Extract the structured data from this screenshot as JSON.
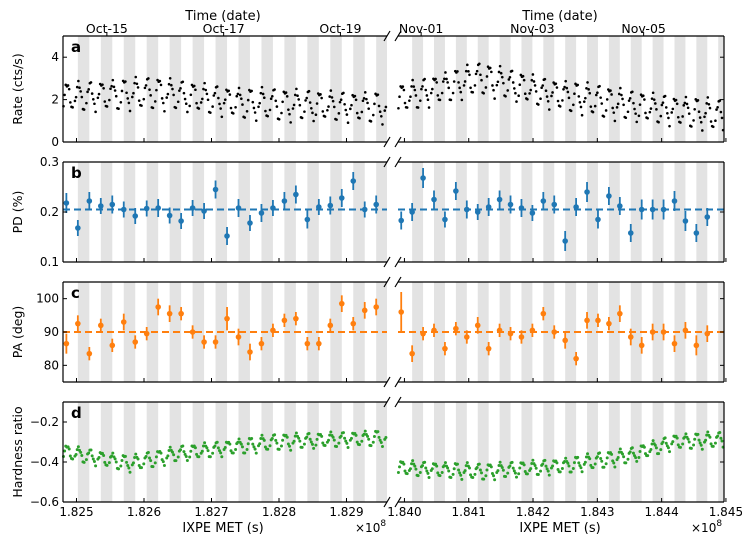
{
  "figure": {
    "top_axis_label": "Time (date)",
    "x_label": "IXPE MET (s)",
    "x_multiplier": "×10",
    "x_multiplier_exp": "8"
  },
  "chart_data": {
    "type": "scatter",
    "segments": [
      {
        "name": "left",
        "xlim": [
          1.8248,
          1.8296
        ],
        "xticks": [
          1.825,
          1.826,
          1.827,
          1.828,
          1.829
        ],
        "xtick_labels": [
          "1.825",
          "1.826",
          "1.827",
          "1.828",
          "1.829"
        ],
        "date_ticks": [
          {
            "x": 1.82545,
            "label": "Oct-15"
          },
          {
            "x": 1.82718,
            "label": "Oct-17"
          },
          {
            "x": 1.82891,
            "label": "Oct-19"
          }
        ],
        "orbit_start": 1.82485,
        "orbit_period": 0.00017
      },
      {
        "name": "right",
        "xlim": [
          1.8399,
          1.84497
        ],
        "xticks": [
          1.84,
          1.841,
          1.842,
          1.843,
          1.844,
          1.845
        ],
        "xtick_labels": [
          "1.840",
          "1.841",
          "1.842",
          "1.843",
          "1.844",
          "1.845"
        ],
        "date_ticks": [
          {
            "x": 1.84026,
            "label": "Nov-01"
          },
          {
            "x": 1.84199,
            "label": "Nov-03"
          },
          {
            "x": 1.84372,
            "label": "Nov-05"
          }
        ],
        "orbit_start": 1.83995,
        "orbit_period": 0.00017
      }
    ],
    "panels": [
      {
        "id": "a",
        "ylabel": "Rate (cts/s)",
        "color": "#000000",
        "kind": "dense",
        "ylim": [
          0,
          5
        ],
        "yticks": [
          0,
          2,
          4
        ],
        "ytick_labels": [
          "0",
          "2",
          "4"
        ],
        "left_trend": [
          [
            1.8248,
            2.1
          ],
          [
            1.8262,
            2.3
          ],
          [
            1.8275,
            1.8
          ],
          [
            1.8296,
            1.6
          ]
        ],
        "right_trend": [
          [
            1.8399,
            2.0
          ],
          [
            1.8412,
            3.0
          ],
          [
            1.8422,
            2.3
          ],
          [
            1.8435,
            1.7
          ],
          [
            1.845,
            1.2
          ]
        ],
        "swing": 0.65
      },
      {
        "id": "b",
        "ylabel": "PD (%)",
        "color": "#1f77b4",
        "kind": "errorbar",
        "ylim": [
          0.1,
          0.3
        ],
        "yticks": [
          0.1,
          0.2,
          0.3
        ],
        "ytick_labels": [
          "0.1",
          "0.2",
          "0.3"
        ],
        "mean": 0.205,
        "left": {
          "x": [
            1.82485,
            1.82502,
            1.82519,
            1.82536,
            1.82553,
            1.8257,
            1.82587,
            1.82604,
            1.82621,
            1.82638,
            1.82655,
            1.82672,
            1.82689,
            1.82706,
            1.82723,
            1.8274,
            1.82757,
            1.82774,
            1.82791,
            1.82808,
            1.82825,
            1.82842,
            1.82859,
            1.82876,
            1.82893,
            1.8291,
            1.82927,
            1.82944
          ],
          "y": [
            0.218,
            0.168,
            0.222,
            0.212,
            0.215,
            0.205,
            0.192,
            0.207,
            0.208,
            0.193,
            0.182,
            0.208,
            0.202,
            0.245,
            0.152,
            0.208,
            0.178,
            0.198,
            0.208,
            0.222,
            0.235,
            0.185,
            0.21,
            0.213,
            0.228,
            0.262,
            0.205,
            0.215
          ],
          "err": [
            0.02,
            0.016,
            0.018,
            0.016,
            0.018,
            0.016,
            0.016,
            0.016,
            0.018,
            0.016,
            0.016,
            0.016,
            0.016,
            0.018,
            0.018,
            0.018,
            0.016,
            0.018,
            0.016,
            0.018,
            0.018,
            0.018,
            0.016,
            0.018,
            0.018,
            0.018,
            0.016,
            0.018
          ]
        },
        "right": {
          "x": [
            1.83995,
            1.84012,
            1.84029,
            1.84046,
            1.84063,
            1.8408,
            1.84097,
            1.84114,
            1.84131,
            1.84148,
            1.84165,
            1.84182,
            1.84199,
            1.84216,
            1.84233,
            1.8425,
            1.84267,
            1.84284,
            1.84301,
            1.84318,
            1.84335,
            1.84352,
            1.84369,
            1.84386,
            1.84403,
            1.8442,
            1.84437,
            1.84454,
            1.84471
          ],
          "y": [
            0.183,
            0.2,
            0.268,
            0.225,
            0.185,
            0.242,
            0.205,
            0.2,
            0.21,
            0.225,
            0.215,
            0.208,
            0.198,
            0.222,
            0.215,
            0.142,
            0.21,
            0.24,
            0.185,
            0.232,
            0.212,
            0.158,
            0.205,
            0.205,
            0.205,
            0.222,
            0.182,
            0.158,
            0.19
          ],
          "err": [
            0.018,
            0.018,
            0.02,
            0.018,
            0.016,
            0.018,
            0.018,
            0.016,
            0.018,
            0.018,
            0.018,
            0.018,
            0.016,
            0.018,
            0.018,
            0.02,
            0.018,
            0.02,
            0.018,
            0.018,
            0.018,
            0.018,
            0.02,
            0.02,
            0.02,
            0.02,
            0.02,
            0.018,
            0.018
          ]
        }
      },
      {
        "id": "c",
        "ylabel": "PA (deg)",
        "color": "#ff7f0e",
        "kind": "errorbar",
        "ylim": [
          75,
          105
        ],
        "yticks": [
          80,
          90,
          100
        ],
        "ytick_labels": [
          "80",
          "90",
          "100"
        ],
        "mean": 90,
        "left": {
          "x": [
            1.82485,
            1.82502,
            1.82519,
            1.82536,
            1.82553,
            1.8257,
            1.82587,
            1.82604,
            1.82621,
            1.82638,
            1.82655,
            1.82672,
            1.82689,
            1.82706,
            1.82723,
            1.8274,
            1.82757,
            1.82774,
            1.82791,
            1.82808,
            1.82825,
            1.82842,
            1.82859,
            1.82876,
            1.82893,
            1.8291,
            1.82927,
            1.82944
          ],
          "y": [
            86.5,
            92.5,
            83.5,
            92.0,
            86.0,
            93.0,
            87.0,
            89.5,
            97.5,
            95.5,
            95.5,
            90.0,
            87.0,
            87.0,
            94.0,
            88.5,
            84.0,
            86.5,
            90.5,
            93.5,
            94.0,
            86.5,
            86.5,
            92.0,
            98.5,
            92.5,
            96.5,
            97.5
          ],
          "err": [
            3.0,
            2.5,
            2.0,
            2.0,
            2.0,
            2.5,
            2.0,
            2.0,
            2.5,
            2.5,
            2.0,
            2.0,
            2.0,
            2.0,
            3.5,
            2.5,
            2.5,
            2.0,
            2.0,
            2.0,
            2.0,
            2.0,
            2.0,
            2.0,
            2.5,
            2.0,
            2.5,
            2.5
          ]
        },
        "right": {
          "x": [
            1.83995,
            1.84012,
            1.84029,
            1.84046,
            1.84063,
            1.8408,
            1.84097,
            1.84114,
            1.84131,
            1.84148,
            1.84165,
            1.84182,
            1.84199,
            1.84216,
            1.84233,
            1.8425,
            1.84267,
            1.84284,
            1.84301,
            1.84318,
            1.84335,
            1.84352,
            1.84369,
            1.84386,
            1.84403,
            1.8442,
            1.84437,
            1.84454,
            1.84471
          ],
          "y": [
            96.0,
            83.5,
            89.5,
            90.5,
            85.0,
            91.0,
            88.5,
            92.0,
            85.0,
            90.5,
            89.5,
            88.5,
            90.5,
            95.5,
            90.0,
            87.5,
            82.0,
            93.5,
            93.5,
            92.5,
            95.5,
            88.5,
            86.0,
            90.0,
            90.0,
            86.5,
            90.5,
            86.0,
            89.5
          ],
          "err": [
            6.0,
            2.5,
            2.0,
            2.0,
            2.0,
            2.0,
            2.0,
            2.5,
            2.0,
            2.0,
            2.0,
            2.0,
            2.0,
            2.0,
            2.0,
            2.5,
            2.0,
            2.5,
            2.0,
            2.0,
            2.5,
            2.5,
            2.5,
            2.5,
            2.5,
            2.5,
            2.5,
            3.0,
            2.5
          ]
        }
      },
      {
        "id": "d",
        "ylabel": "Hardness ratio",
        "color": "#2ca02c",
        "kind": "dense",
        "ylim": [
          -0.6,
          -0.1
        ],
        "yticks": [
          -0.6,
          -0.4,
          -0.2
        ],
        "ytick_labels": [
          "−0.6",
          "−0.4",
          "−0.2"
        ],
        "left_trend": [
          [
            1.8248,
            -0.35
          ],
          [
            1.8258,
            -0.41
          ],
          [
            1.8265,
            -0.36
          ],
          [
            1.828,
            -0.3
          ],
          [
            1.8296,
            -0.28
          ]
        ],
        "right_trend": [
          [
            1.8399,
            -0.43
          ],
          [
            1.8412,
            -0.45
          ],
          [
            1.8425,
            -0.42
          ],
          [
            1.8435,
            -0.37
          ],
          [
            1.8442,
            -0.3
          ],
          [
            1.845,
            -0.29
          ]
        ],
        "swing": 0.035
      }
    ]
  }
}
